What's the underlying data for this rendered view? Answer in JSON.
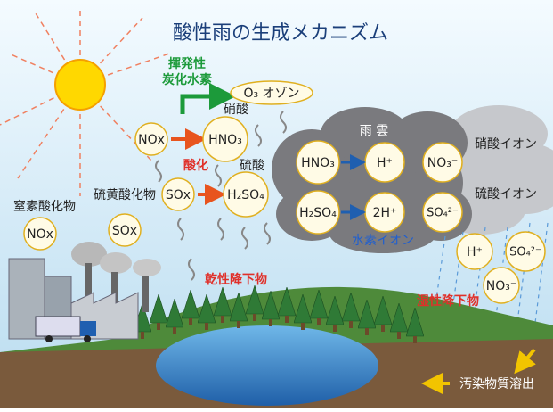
{
  "title": "酸性雨の生成メカニズム",
  "hydrocarbon": [
    "揮発性",
    "炭化水素"
  ],
  "ozone": "O₃ オゾン",
  "reactions": {
    "nox": "NOx",
    "hno3": "HNO₃",
    "nitric_acid": "硝酸",
    "oxidation": "酸化",
    "sox": "SOx",
    "h2so4": "H₂SO₄",
    "sulfuric_acid": "硫酸"
  },
  "sources": {
    "nitrogen_oxides": "窒素酸化物",
    "nox": "NOx",
    "sulfur_oxides": "硫黄酸化物",
    "sox": "SOx"
  },
  "dry_deposition": "乾性降下物",
  "cloud": {
    "label": "雨 雲",
    "rows": [
      [
        "HNO₃",
        "H⁺",
        "NO₃⁻"
      ],
      [
        "H₂SO₄",
        "2H⁺",
        "SO₄²⁻"
      ]
    ],
    "hydrogen_ion": "水素イオン"
  },
  "ion_labels": [
    "硝酸イオン",
    "硫酸イオン"
  ],
  "rain_ions": [
    "H⁺",
    "SO₄²⁻",
    "NO₃⁻"
  ],
  "wet_deposition": "湿性降下物",
  "leaching": "汚染物質溶出"
}
